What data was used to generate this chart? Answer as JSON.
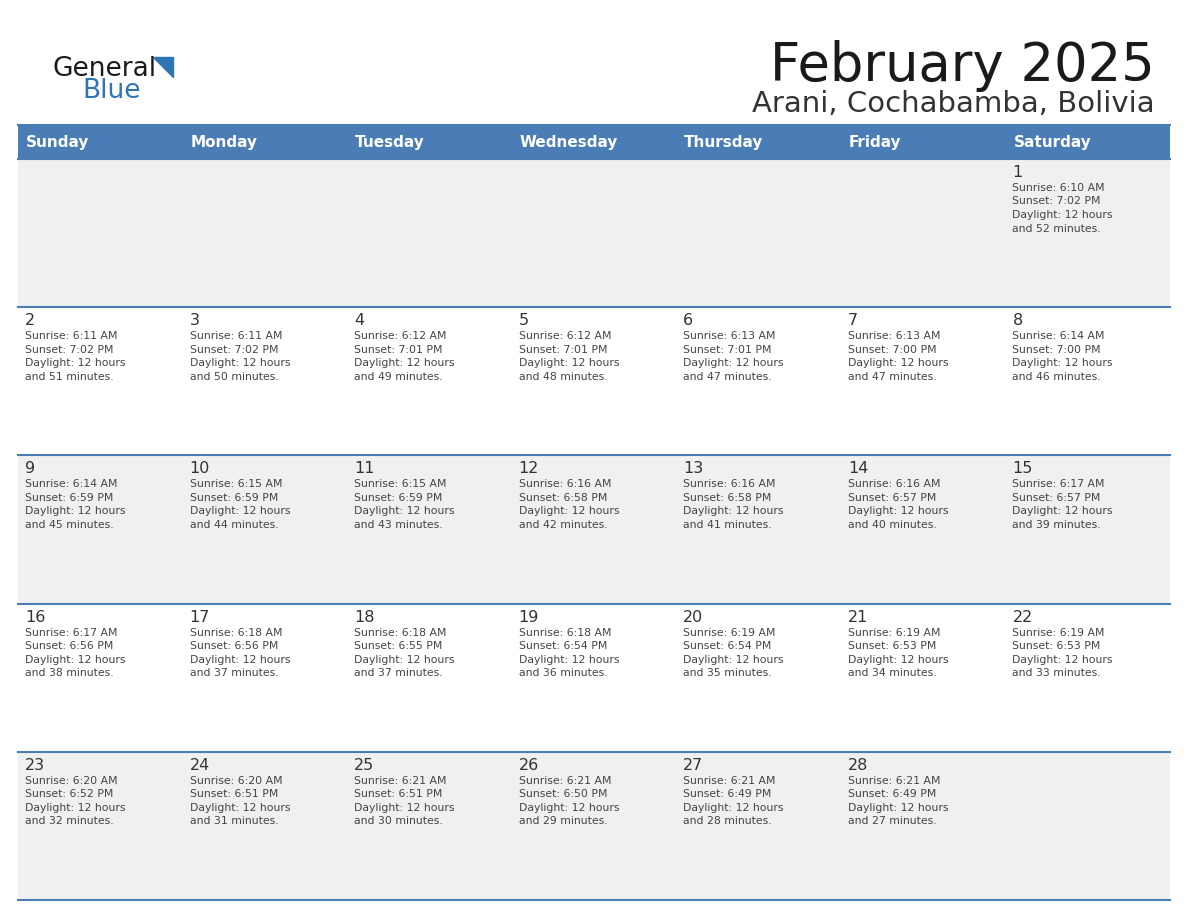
{
  "title": "February 2025",
  "subtitle": "Arani, Cochabamba, Bolivia",
  "header_bg_color": "#4A7DB5",
  "header_text_color": "#FFFFFF",
  "days_of_week": [
    "Sunday",
    "Monday",
    "Tuesday",
    "Wednesday",
    "Thursday",
    "Friday",
    "Saturday"
  ],
  "cell_bg_light": "#F0F0F0",
  "cell_bg_white": "#FFFFFF",
  "cell_border_color": "#4A7DB5",
  "day_number_color": "#333333",
  "info_text_color": "#444444",
  "logo_general_color": "#1A1A1A",
  "logo_blue_color": "#2E75B6",
  "logo_triangle_color": "#2E75B6",
  "calendar_data": [
    [
      null,
      null,
      null,
      null,
      null,
      null,
      {
        "day": 1,
        "sunrise": "6:10 AM",
        "sunset": "7:02 PM",
        "daylight_hours": 12,
        "daylight_minutes": 52
      }
    ],
    [
      {
        "day": 2,
        "sunrise": "6:11 AM",
        "sunset": "7:02 PM",
        "daylight_hours": 12,
        "daylight_minutes": 51
      },
      {
        "day": 3,
        "sunrise": "6:11 AM",
        "sunset": "7:02 PM",
        "daylight_hours": 12,
        "daylight_minutes": 50
      },
      {
        "day": 4,
        "sunrise": "6:12 AM",
        "sunset": "7:01 PM",
        "daylight_hours": 12,
        "daylight_minutes": 49
      },
      {
        "day": 5,
        "sunrise": "6:12 AM",
        "sunset": "7:01 PM",
        "daylight_hours": 12,
        "daylight_minutes": 48
      },
      {
        "day": 6,
        "sunrise": "6:13 AM",
        "sunset": "7:01 PM",
        "daylight_hours": 12,
        "daylight_minutes": 47
      },
      {
        "day": 7,
        "sunrise": "6:13 AM",
        "sunset": "7:00 PM",
        "daylight_hours": 12,
        "daylight_minutes": 47
      },
      {
        "day": 8,
        "sunrise": "6:14 AM",
        "sunset": "7:00 PM",
        "daylight_hours": 12,
        "daylight_minutes": 46
      }
    ],
    [
      {
        "day": 9,
        "sunrise": "6:14 AM",
        "sunset": "6:59 PM",
        "daylight_hours": 12,
        "daylight_minutes": 45
      },
      {
        "day": 10,
        "sunrise": "6:15 AM",
        "sunset": "6:59 PM",
        "daylight_hours": 12,
        "daylight_minutes": 44
      },
      {
        "day": 11,
        "sunrise": "6:15 AM",
        "sunset": "6:59 PM",
        "daylight_hours": 12,
        "daylight_minutes": 43
      },
      {
        "day": 12,
        "sunrise": "6:16 AM",
        "sunset": "6:58 PM",
        "daylight_hours": 12,
        "daylight_minutes": 42
      },
      {
        "day": 13,
        "sunrise": "6:16 AM",
        "sunset": "6:58 PM",
        "daylight_hours": 12,
        "daylight_minutes": 41
      },
      {
        "day": 14,
        "sunrise": "6:16 AM",
        "sunset": "6:57 PM",
        "daylight_hours": 12,
        "daylight_minutes": 40
      },
      {
        "day": 15,
        "sunrise": "6:17 AM",
        "sunset": "6:57 PM",
        "daylight_hours": 12,
        "daylight_minutes": 39
      }
    ],
    [
      {
        "day": 16,
        "sunrise": "6:17 AM",
        "sunset": "6:56 PM",
        "daylight_hours": 12,
        "daylight_minutes": 38
      },
      {
        "day": 17,
        "sunrise": "6:18 AM",
        "sunset": "6:56 PM",
        "daylight_hours": 12,
        "daylight_minutes": 37
      },
      {
        "day": 18,
        "sunrise": "6:18 AM",
        "sunset": "6:55 PM",
        "daylight_hours": 12,
        "daylight_minutes": 37
      },
      {
        "day": 19,
        "sunrise": "6:18 AM",
        "sunset": "6:54 PM",
        "daylight_hours": 12,
        "daylight_minutes": 36
      },
      {
        "day": 20,
        "sunrise": "6:19 AM",
        "sunset": "6:54 PM",
        "daylight_hours": 12,
        "daylight_minutes": 35
      },
      {
        "day": 21,
        "sunrise": "6:19 AM",
        "sunset": "6:53 PM",
        "daylight_hours": 12,
        "daylight_minutes": 34
      },
      {
        "day": 22,
        "sunrise": "6:19 AM",
        "sunset": "6:53 PM",
        "daylight_hours": 12,
        "daylight_minutes": 33
      }
    ],
    [
      {
        "day": 23,
        "sunrise": "6:20 AM",
        "sunset": "6:52 PM",
        "daylight_hours": 12,
        "daylight_minutes": 32
      },
      {
        "day": 24,
        "sunrise": "6:20 AM",
        "sunset": "6:51 PM",
        "daylight_hours": 12,
        "daylight_minutes": 31
      },
      {
        "day": 25,
        "sunrise": "6:21 AM",
        "sunset": "6:51 PM",
        "daylight_hours": 12,
        "daylight_minutes": 30
      },
      {
        "day": 26,
        "sunrise": "6:21 AM",
        "sunset": "6:50 PM",
        "daylight_hours": 12,
        "daylight_minutes": 29
      },
      {
        "day": 27,
        "sunrise": "6:21 AM",
        "sunset": "6:49 PM",
        "daylight_hours": 12,
        "daylight_minutes": 28
      },
      {
        "day": 28,
        "sunrise": "6:21 AM",
        "sunset": "6:49 PM",
        "daylight_hours": 12,
        "daylight_minutes": 27
      },
      null
    ]
  ]
}
